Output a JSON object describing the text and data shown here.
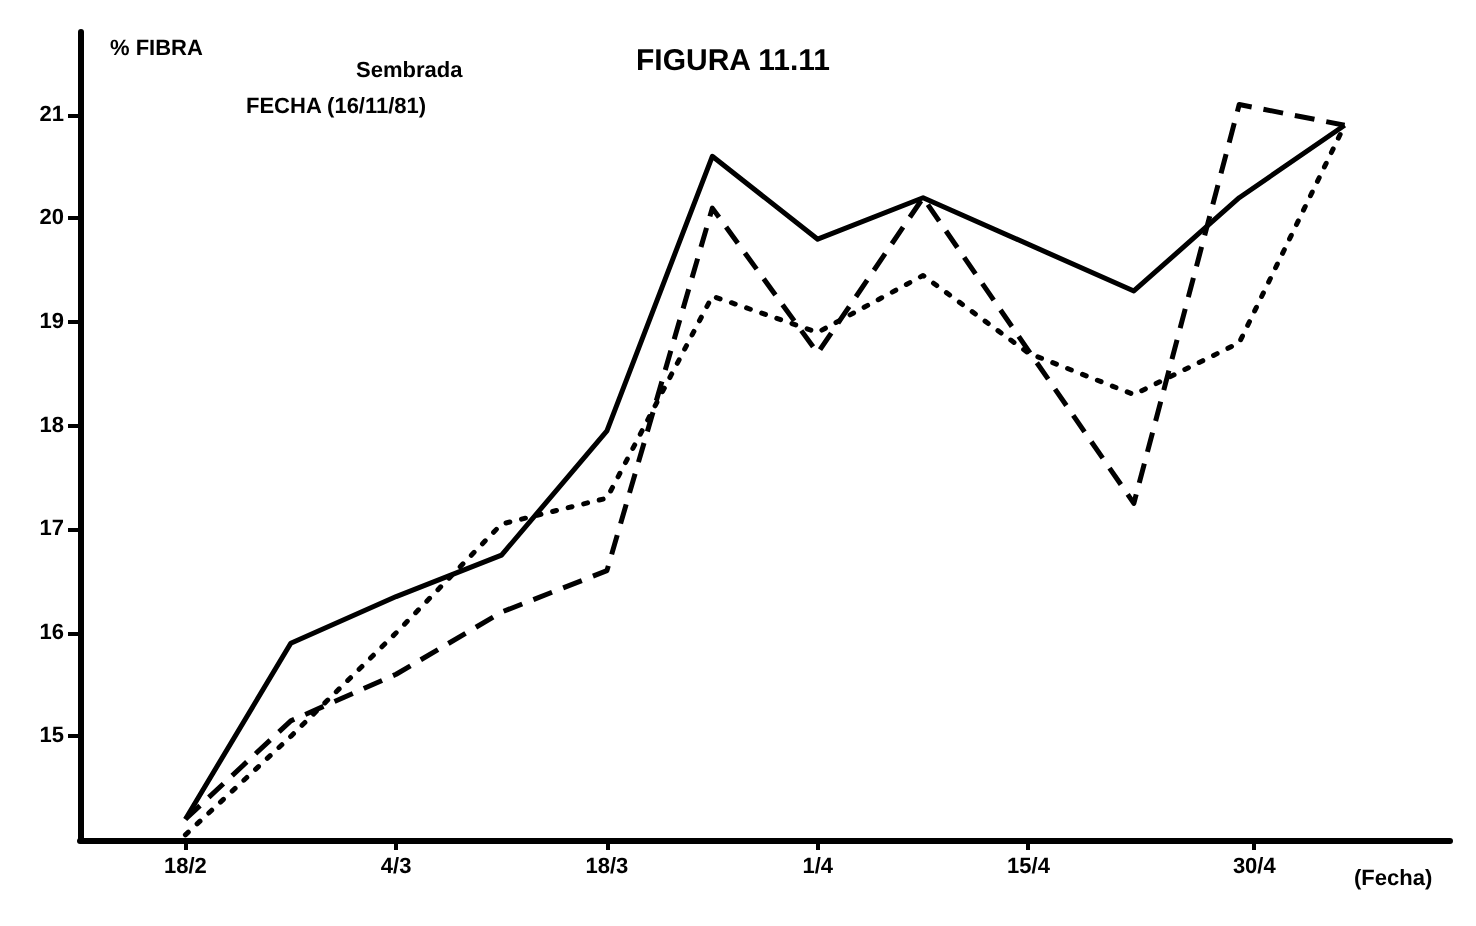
{
  "chart_data": {
    "type": "line",
    "title": "FIGURA 11.11",
    "ylabel": "% FIBRA",
    "xlabel": "(Fecha)",
    "annotations": [
      "Sembrada",
      "FECHA (16/11/81)"
    ],
    "x": [
      "--02-18",
      "--02-25",
      "--03-04",
      "--03-11",
      "--03-18",
      "--03-25",
      "--04-01",
      "--04-08",
      "--04-22",
      "--04-29",
      "--05-06"
    ],
    "series": [
      {
        "color": "#000000",
        "line_style": "solid",
        "values": [
          14.2,
          15.9,
          16.35,
          16.75,
          17.95,
          20.6,
          19.8,
          20.2,
          19.3,
          20.2,
          20.9
        ]
      },
      {
        "color": "#000000",
        "line_style": "dashed",
        "values": [
          14.2,
          15.15,
          15.6,
          16.2,
          16.6,
          20.1,
          18.7,
          20.2,
          17.25,
          21.1,
          20.9
        ]
      },
      {
        "color": "#000000",
        "line_style": "dotted",
        "x": [
          "--02-18",
          "--02-25",
          "--03-04",
          "--03-11",
          "--03-18",
          "--03-25",
          "--04-01",
          "--04-08",
          "--04-15",
          "--04-22",
          "--04-29",
          "--05-06"
        ],
        "values": [
          14.05,
          15.0,
          16.0,
          17.05,
          17.3,
          19.25,
          18.9,
          19.45,
          18.7,
          18.3,
          18.8,
          20.9
        ]
      }
    ],
    "xlim": [
      "--02-11",
      "--05-13"
    ],
    "xticks": [
      {
        "value": "--02-18",
        "label": "18/2"
      },
      {
        "value": "--03-04",
        "label": "4/3"
      },
      {
        "value": "--03-18",
        "label": "18/3"
      },
      {
        "value": "--04-01",
        "label": "1/4"
      },
      {
        "value": "--04-15",
        "label": "15/4"
      },
      {
        "value": "--04-30",
        "label": "30/4"
      }
    ],
    "ylim": [
      14.0,
      21.8
    ],
    "yticks": [
      15,
      16,
      17,
      18,
      19,
      20,
      21
    ],
    "grid": false,
    "marker": "none"
  }
}
